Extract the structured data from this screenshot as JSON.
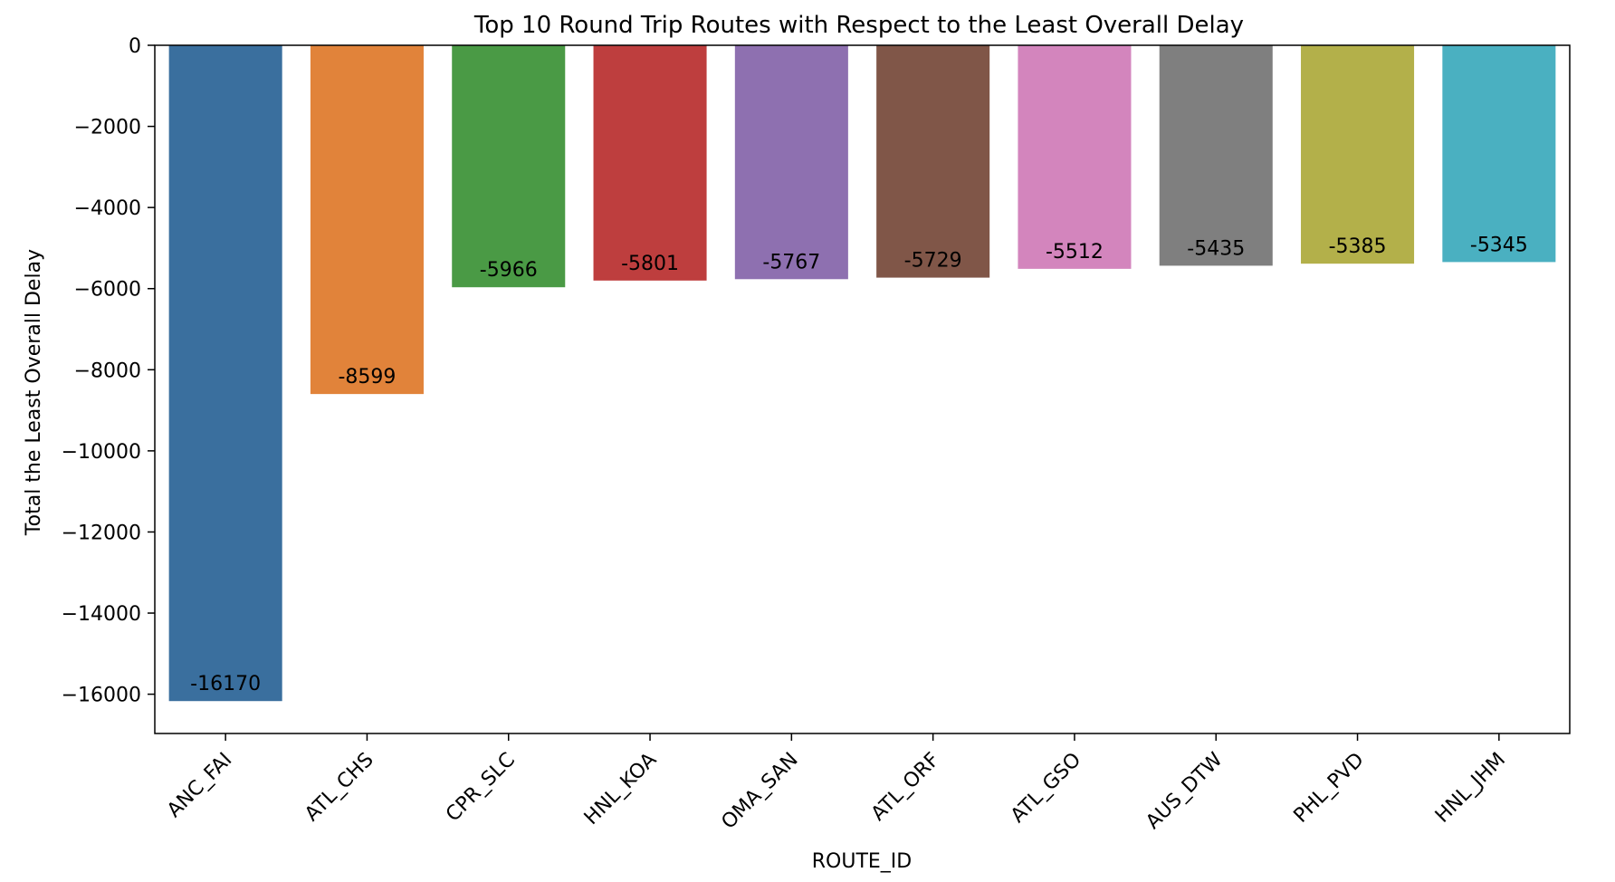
{
  "chart_data": {
    "type": "bar",
    "title": "Top 10 Round Trip Routes with Respect to the Least Overall Delay",
    "xlabel": "ROUTE_ID",
    "ylabel": "Total the Least Overall Delay",
    "categories": [
      "ANC_FAI",
      "ATL_CHS",
      "CPR_SLC",
      "HNL_KOA",
      "OMA_SAN",
      "ATL_ORF",
      "ATL_GSO",
      "AUS_DTW",
      "PHL_PVD",
      "HNL_JHM"
    ],
    "values": [
      -16170,
      -8599,
      -5966,
      -5801,
      -5767,
      -5729,
      -5512,
      -5435,
      -5385,
      -5345
    ],
    "data_labels": [
      "-16170",
      "-8599",
      "-5966",
      "-5801",
      "-5767",
      "-5729",
      "-5512",
      "-5435",
      "-5385",
      "-5345"
    ],
    "yticks": [
      0,
      -2000,
      -4000,
      -6000,
      -8000,
      -10000,
      -12000,
      -14000,
      -16000
    ],
    "ytick_labels": [
      "0",
      "−2000",
      "−4000",
      "−6000",
      "−8000",
      "−10000",
      "−12000",
      "−14000",
      "−16000"
    ],
    "ylim": [
      -16980,
      0
    ],
    "colors": [
      "#3a6f9e",
      "#e1833a",
      "#4a9a45",
      "#be3e3e",
      "#8e70b0",
      "#805648",
      "#d385bd",
      "#7f7f7f",
      "#b3b04a",
      "#4ab0c1"
    ],
    "grid": false,
    "legend": "none"
  }
}
